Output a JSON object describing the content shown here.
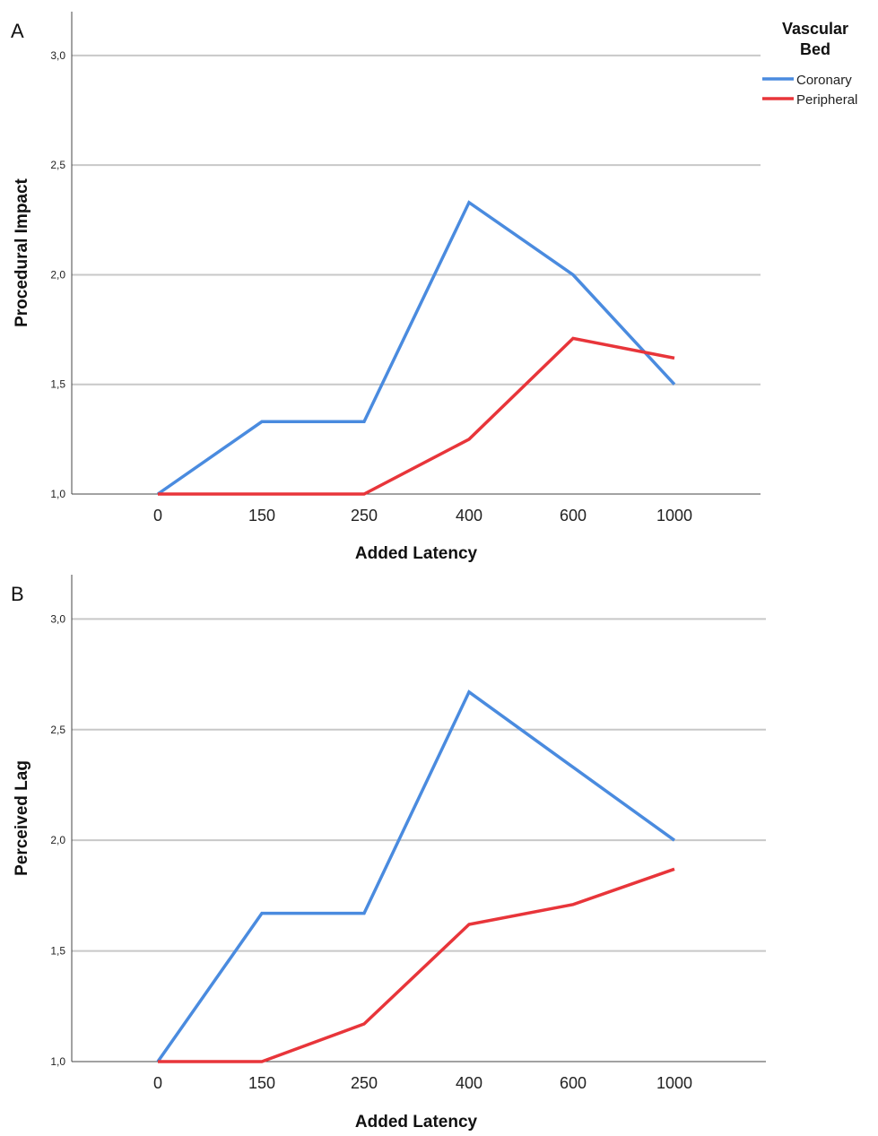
{
  "legend": {
    "title_line1": "Vascular",
    "title_line2": "Bed",
    "entries": [
      {
        "label": "Coronary",
        "color": "#4a8bdf"
      },
      {
        "label": "Peripheral",
        "color": "#e8353a"
      }
    ]
  },
  "chart_data": [
    {
      "panel_label": "A",
      "type": "line",
      "xlabel": "Added Latency",
      "ylabel": "Procedural Impact",
      "categories": [
        "0",
        "150",
        "250",
        "400",
        "600",
        "1000"
      ],
      "yticks": [
        "1,0",
        "1,5",
        "2,0",
        "2,5",
        "3,0"
      ],
      "ylim": [
        1.0,
        3.2
      ],
      "grid": "horizontal",
      "legend_position": "top-right",
      "series": [
        {
          "name": "Coronary",
          "color": "#4a8bdf",
          "values": [
            1.0,
            1.33,
            1.33,
            2.33,
            2.0,
            1.5
          ]
        },
        {
          "name": "Peripheral",
          "color": "#e8353a",
          "values": [
            1.0,
            1.0,
            1.0,
            1.25,
            1.71,
            1.62
          ]
        }
      ]
    },
    {
      "panel_label": "B",
      "type": "line",
      "xlabel": "Added Latency",
      "ylabel": "Perceived Lag",
      "categories": [
        "0",
        "150",
        "250",
        "400",
        "600",
        "1000"
      ],
      "yticks": [
        "1,0",
        "1,5",
        "2,0",
        "2,5",
        "3,0"
      ],
      "ylim": [
        1.0,
        3.2
      ],
      "grid": "horizontal",
      "series": [
        {
          "name": "Coronary",
          "color": "#4a8bdf",
          "values": [
            1.0,
            1.67,
            1.67,
            2.67,
            2.33,
            2.0
          ]
        },
        {
          "name": "Peripheral",
          "color": "#e8353a",
          "values": [
            1.0,
            1.0,
            1.17,
            1.62,
            1.71,
            1.87
          ]
        }
      ]
    }
  ]
}
